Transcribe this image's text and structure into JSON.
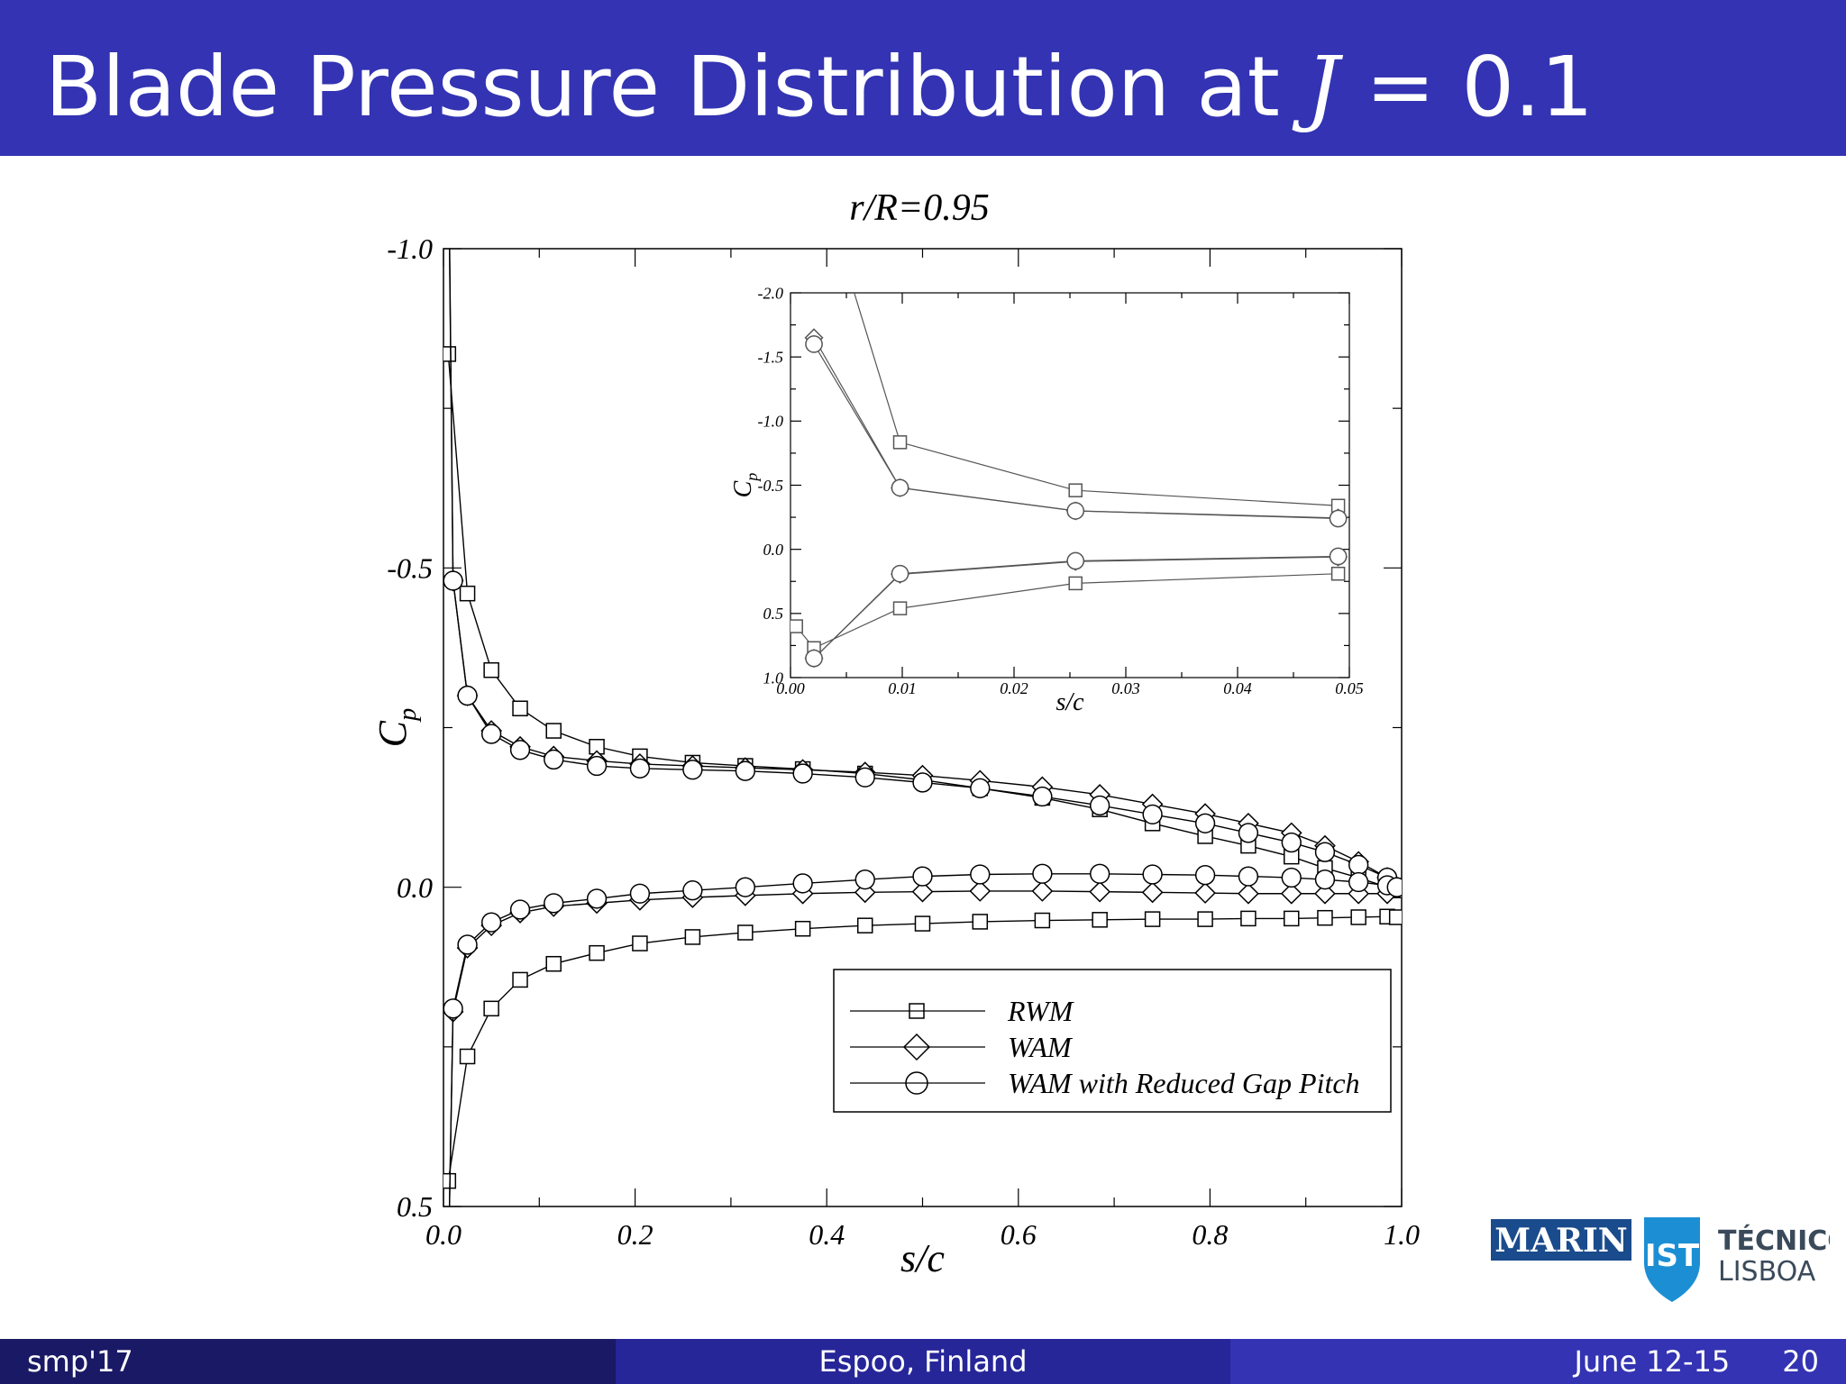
{
  "slide": {
    "title_prefix": "Blade Pressure Distribution at ",
    "title_var": "J",
    "title_suffix": " = 0.1",
    "accent_color": "#3333b3"
  },
  "footer": {
    "left": "smp'17",
    "center": "Espoo, Finland",
    "date": "June 12-15",
    "page": "20"
  },
  "logos": {
    "marin": "MARIN",
    "ist_line1": "TÉCNICO",
    "ist_line2": "LISBOA",
    "ist_emblem_icon": "ist-shield-icon"
  },
  "chart_data": [
    {
      "type": "line",
      "title": "r/R=0.95",
      "xlabel": "s/c",
      "ylabel": "Cp",
      "xlim": [
        0.0,
        1.0
      ],
      "ylim": [
        -1.0,
        0.5
      ],
      "y_inverted": true,
      "xticks": [
        "0.0",
        "0.2",
        "0.4",
        "0.6",
        "0.8",
        "1.0"
      ],
      "yticks": [
        "-1.0",
        "-0.5",
        "0.0",
        "0.5"
      ],
      "legend_position": "lower-right",
      "legend": [
        "RWM",
        "WAM",
        "WAM with Reduced Gap Pitch"
      ],
      "series": [
        {
          "name": "RWM",
          "marker": "square",
          "side": "upper",
          "x": [
            0.005,
            0.025,
            0.05,
            0.08,
            0.115,
            0.16,
            0.205,
            0.26,
            0.315,
            0.375,
            0.44,
            0.5,
            0.56,
            0.625,
            0.685,
            0.74,
            0.795,
            0.84,
            0.885,
            0.92,
            0.955,
            0.985,
            0.995
          ],
          "y": [
            -0.835,
            -0.46,
            -0.34,
            -0.28,
            -0.245,
            -0.22,
            -0.205,
            -0.195,
            -0.19,
            -0.185,
            -0.178,
            -0.168,
            -0.155,
            -0.14,
            -0.122,
            -0.1,
            -0.08,
            -0.065,
            -0.048,
            -0.03,
            -0.015,
            0.0,
            0.005
          ]
        },
        {
          "name": "WAM",
          "marker": "diamond",
          "side": "upper",
          "x": [
            0.002,
            0.01,
            0.025,
            0.05,
            0.08,
            0.115,
            0.16,
            0.205,
            0.26,
            0.315,
            0.375,
            0.44,
            0.5,
            0.56,
            0.625,
            0.685,
            0.74,
            0.795,
            0.84,
            0.885,
            0.92,
            0.955,
            0.985,
            0.995
          ],
          "y": [
            -1.65,
            -0.48,
            -0.3,
            -0.245,
            -0.22,
            -0.205,
            -0.198,
            -0.193,
            -0.19,
            -0.187,
            -0.184,
            -0.18,
            -0.175,
            -0.167,
            -0.157,
            -0.145,
            -0.13,
            -0.115,
            -0.1,
            -0.085,
            -0.065,
            -0.04,
            -0.015,
            0.0
          ]
        },
        {
          "name": "WAM with Reduced Gap Pitch",
          "marker": "circle",
          "side": "upper",
          "x": [
            0.002,
            0.01,
            0.025,
            0.05,
            0.08,
            0.115,
            0.16,
            0.205,
            0.26,
            0.315,
            0.375,
            0.44,
            0.5,
            0.56,
            0.625,
            0.685,
            0.74,
            0.795,
            0.84,
            0.885,
            0.92,
            0.955,
            0.985,
            0.995
          ],
          "y": [
            -1.6,
            -0.48,
            -0.3,
            -0.24,
            -0.215,
            -0.2,
            -0.19,
            -0.186,
            -0.184,
            -0.182,
            -0.178,
            -0.172,
            -0.164,
            -0.155,
            -0.142,
            -0.128,
            -0.114,
            -0.1,
            -0.085,
            -0.07,
            -0.055,
            -0.035,
            -0.015,
            0.0
          ]
        },
        {
          "name": "RWM",
          "marker": "square",
          "side": "lower",
          "x": [
            0.005,
            0.025,
            0.05,
            0.08,
            0.115,
            0.16,
            0.205,
            0.26,
            0.315,
            0.375,
            0.44,
            0.5,
            0.56,
            0.625,
            0.685,
            0.74,
            0.795,
            0.84,
            0.885,
            0.92,
            0.955,
            0.985,
            0.995
          ],
          "y": [
            0.46,
            0.265,
            0.19,
            0.145,
            0.12,
            0.103,
            0.088,
            0.078,
            0.071,
            0.065,
            0.06,
            0.057,
            0.054,
            0.052,
            0.051,
            0.05,
            0.05,
            0.049,
            0.049,
            0.048,
            0.047,
            0.046,
            0.047
          ]
        },
        {
          "name": "WAM",
          "marker": "diamond",
          "side": "lower",
          "x": [
            0.002,
            0.01,
            0.025,
            0.05,
            0.08,
            0.115,
            0.16,
            0.205,
            0.26,
            0.315,
            0.375,
            0.44,
            0.5,
            0.56,
            0.625,
            0.685,
            0.74,
            0.795,
            0.84,
            0.885,
            0.92,
            0.955,
            0.985,
            0.995
          ],
          "y": [
            0.85,
            0.195,
            0.095,
            0.06,
            0.04,
            0.03,
            0.025,
            0.02,
            0.016,
            0.013,
            0.01,
            0.008,
            0.007,
            0.006,
            0.006,
            0.007,
            0.008,
            0.009,
            0.01,
            0.01,
            0.01,
            0.01,
            0.01,
            0.0
          ]
        },
        {
          "name": "WAM with Reduced Gap Pitch",
          "marker": "circle",
          "side": "lower",
          "x": [
            0.002,
            0.01,
            0.025,
            0.05,
            0.08,
            0.115,
            0.16,
            0.205,
            0.26,
            0.315,
            0.375,
            0.44,
            0.5,
            0.56,
            0.625,
            0.685,
            0.74,
            0.795,
            0.84,
            0.885,
            0.92,
            0.955,
            0.985,
            0.995
          ],
          "y": [
            0.85,
            0.19,
            0.09,
            0.055,
            0.035,
            0.025,
            0.018,
            0.01,
            0.005,
            0.0,
            -0.006,
            -0.012,
            -0.017,
            -0.02,
            -0.021,
            -0.021,
            -0.02,
            -0.019,
            -0.017,
            -0.015,
            -0.012,
            -0.008,
            -0.003,
            0.0
          ]
        }
      ]
    },
    {
      "type": "line",
      "inset": true,
      "xlabel": "s/c",
      "ylabel": "Cp",
      "xlim": [
        0.0,
        0.05
      ],
      "ylim": [
        -2.0,
        1.0
      ],
      "y_inverted": true,
      "xticks": [
        "0.00",
        "0.01",
        "0.02",
        "0.03",
        "0.04",
        "0.05"
      ],
      "yticks": [
        "-2.0",
        "-1.5",
        "-1.0",
        "-0.5",
        "0.0",
        "0.5",
        "1.0"
      ],
      "series": [
        {
          "name": "RWM",
          "marker": "square",
          "side": "upper",
          "x": [
            0.0005,
            0.005,
            0.0098,
            0.0255,
            0.049
          ],
          "y": [
            -3.0,
            -2.2,
            -0.835,
            -0.46,
            -0.34
          ]
        },
        {
          "name": "RWM",
          "marker": "square",
          "side": "lower",
          "x": [
            0.0005,
            0.0021,
            0.0098,
            0.0255,
            0.049
          ],
          "y": [
            0.6,
            0.77,
            0.46,
            0.265,
            0.19
          ]
        },
        {
          "name": "WAM",
          "marker": "diamond",
          "side": "upper",
          "x": [
            0.0021,
            0.0098,
            0.0255,
            0.049
          ],
          "y": [
            -1.65,
            -0.48,
            -0.3,
            -0.245
          ]
        },
        {
          "name": "WAM",
          "marker": "diamond",
          "side": "lower",
          "x": [
            0.0021,
            0.0098,
            0.0255,
            0.049
          ],
          "y": [
            0.85,
            0.195,
            0.095,
            0.06
          ]
        },
        {
          "name": "WAM with Reduced Gap Pitch",
          "marker": "circle",
          "side": "upper",
          "x": [
            0.0021,
            0.0098,
            0.0255,
            0.049
          ],
          "y": [
            -1.6,
            -0.48,
            -0.3,
            -0.24
          ]
        },
        {
          "name": "WAM with Reduced Gap Pitch",
          "marker": "circle",
          "side": "lower",
          "x": [
            0.0021,
            0.0098,
            0.0255,
            0.049
          ],
          "y": [
            0.85,
            0.19,
            0.09,
            0.055
          ]
        }
      ]
    }
  ]
}
